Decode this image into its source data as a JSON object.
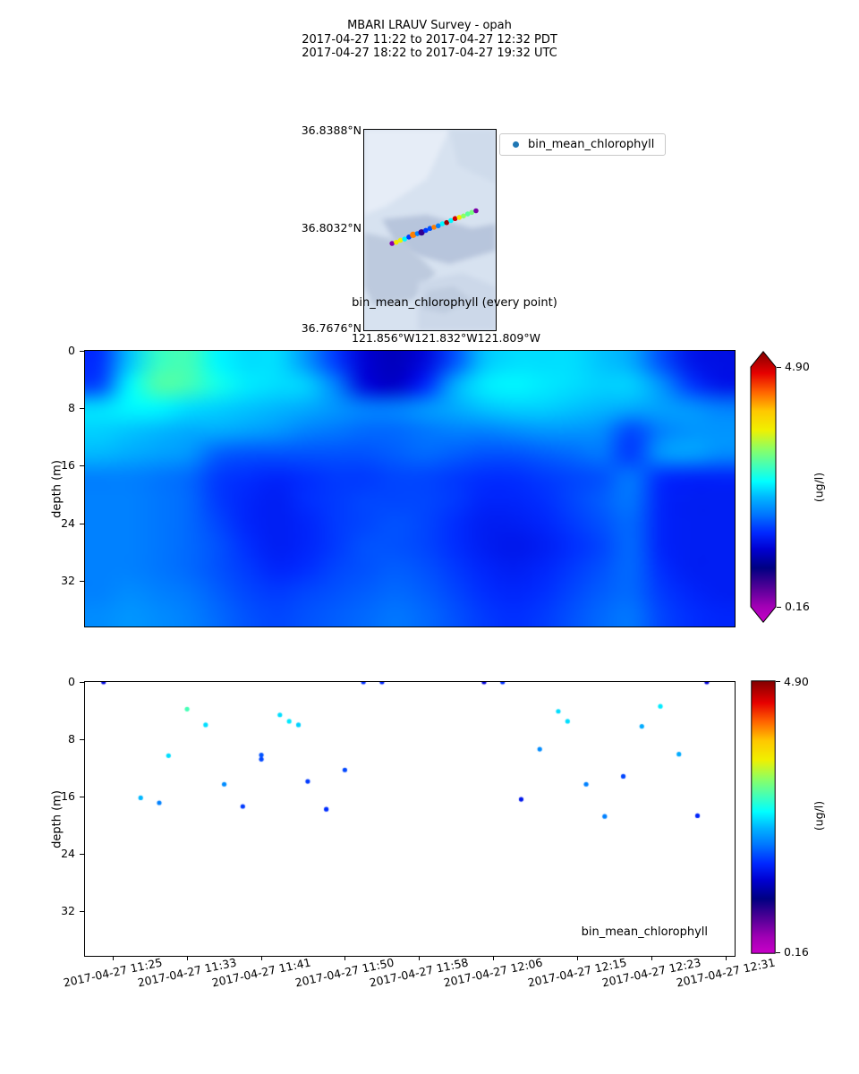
{
  "header": {
    "title": "MBARI LRAUV Survey - opah",
    "subtitle_pdt": "2017-04-27 11:22  to  2017-04-27 12:32 PDT",
    "subtitle_utc": "2017-04-27 18:22  to  2017-04-27 19:32 UTC"
  },
  "colors": {
    "legend_dot": "#1f77b4",
    "map_bg": "#d7e2f0",
    "spine": "#000000"
  },
  "colormap": {
    "vmin": 0.16,
    "vmax": 4.9,
    "stops": [
      [
        0.0,
        "#c800c8"
      ],
      [
        0.06,
        "#a000b4"
      ],
      [
        0.13,
        "#500096"
      ],
      [
        0.2,
        "#000082"
      ],
      [
        0.27,
        "#0000d2"
      ],
      [
        0.33,
        "#0028ff"
      ],
      [
        0.4,
        "#0078ff"
      ],
      [
        0.46,
        "#00b4ff"
      ],
      [
        0.52,
        "#00ffff"
      ],
      [
        0.58,
        "#46ffb4"
      ],
      [
        0.64,
        "#8cff64"
      ],
      [
        0.71,
        "#f0f000"
      ],
      [
        0.78,
        "#ffc800"
      ],
      [
        0.85,
        "#ff6400"
      ],
      [
        0.92,
        "#e60000"
      ],
      [
        1.0,
        "#820000"
      ]
    ]
  },
  "colorbar": {
    "max": "4.90",
    "min": "0.16",
    "unit": "(ug/l)"
  },
  "map": {
    "lat_labels": [
      "36.8388°N",
      "36.8032°N",
      "36.7676°N"
    ],
    "lon_labels": [
      "121.856°W",
      "121.832°W",
      "121.809°W"
    ],
    "legend_label": "bin_mean_chlorophyll",
    "caption": "bin_mean_chlorophyll (every point)",
    "track": [
      {
        "fx": 0.212,
        "fy": 0.567,
        "v": 0.55
      },
      {
        "fx": 0.244,
        "fy": 0.561,
        "v": 3.6
      },
      {
        "fx": 0.276,
        "fy": 0.551,
        "v": 3.5
      },
      {
        "fx": 0.308,
        "fy": 0.545,
        "v": 2.6
      },
      {
        "fx": 0.34,
        "fy": 0.535,
        "v": 1.8
      },
      {
        "fx": 0.372,
        "fy": 0.524,
        "v": 4.1,
        "s": 3.6
      },
      {
        "fx": 0.404,
        "fy": 0.518,
        "v": 2.1
      },
      {
        "fx": 0.436,
        "fy": 0.512,
        "v": 0.9,
        "s": 3.6
      },
      {
        "fx": 0.468,
        "fy": 0.502,
        "v": 1.8
      },
      {
        "fx": 0.5,
        "fy": 0.492,
        "v": 1.9
      },
      {
        "fx": 0.531,
        "fy": 0.486,
        "v": 4.1
      },
      {
        "fx": 0.563,
        "fy": 0.479,
        "v": 2.1
      },
      {
        "fx": 0.595,
        "fy": 0.469,
        "v": 2.6
      },
      {
        "fx": 0.627,
        "fy": 0.463,
        "v": 4.8
      },
      {
        "fx": 0.659,
        "fy": 0.453,
        "v": 2.6
      },
      {
        "fx": 0.691,
        "fy": 0.443,
        "v": 4.6
      },
      {
        "fx": 0.723,
        "fy": 0.437,
        "v": 3.6
      },
      {
        "fx": 0.755,
        "fy": 0.43,
        "v": 3.2
      },
      {
        "fx": 0.787,
        "fy": 0.42,
        "v": 3.0
      },
      {
        "fx": 0.818,
        "fy": 0.412,
        "v": 3.1
      },
      {
        "fx": 0.85,
        "fy": 0.404,
        "v": 0.6
      }
    ]
  },
  "chart_data": [
    {
      "type": "heatmap",
      "title": "bin_mean_chlorophyll (every point)",
      "ylabel": "depth (m)",
      "yticks": [
        "0",
        "8",
        "16",
        "24",
        "32"
      ],
      "ylim": [
        0,
        38.4
      ],
      "x_range": [
        "2017-04-27 11:22",
        "2017-04-27 12:32"
      ],
      "unit": "ug/l",
      "vmin": 0.16,
      "vmax": 4.9,
      "grid": false,
      "values": [
        [
          1.75,
          2.4,
          2.85,
          2.9,
          2.6,
          2.5,
          2.5,
          2.2,
          1.8,
          1.45,
          1.35,
          1.5,
          1.9,
          2.4,
          2.5,
          2.5,
          2.5,
          2.4,
          2.3,
          1.9,
          1.6,
          1.55
        ],
        [
          1.85,
          2.6,
          2.95,
          2.9,
          2.7,
          2.55,
          2.5,
          2.45,
          2.1,
          1.5,
          1.4,
          1.7,
          2.3,
          2.55,
          2.6,
          2.55,
          2.5,
          2.45,
          2.45,
          2.2,
          1.8,
          1.6
        ],
        [
          2.5,
          2.6,
          2.6,
          2.5,
          2.45,
          2.4,
          2.35,
          2.3,
          2.2,
          2.1,
          2.1,
          2.2,
          2.3,
          2.4,
          2.45,
          2.45,
          2.4,
          2.35,
          2.3,
          2.25,
          2.2,
          2.1
        ],
        [
          2.45,
          2.4,
          2.35,
          2.3,
          2.3,
          2.25,
          2.2,
          2.1,
          2.05,
          2.0,
          2.0,
          2.05,
          2.1,
          2.1,
          2.15,
          2.2,
          2.2,
          2.15,
          1.85,
          2.1,
          2.2,
          2.2
        ],
        [
          2.35,
          2.3,
          2.25,
          2.2,
          1.95,
          1.9,
          1.9,
          1.9,
          1.9,
          1.9,
          1.95,
          2.0,
          1.95,
          1.9,
          1.9,
          1.95,
          2.0,
          2.05,
          1.8,
          2.2,
          2.25,
          2.15
        ],
        [
          2.1,
          2.1,
          2.05,
          2.0,
          1.8,
          1.75,
          1.7,
          1.75,
          1.8,
          1.8,
          1.85,
          1.85,
          1.8,
          1.75,
          1.75,
          1.8,
          1.85,
          1.9,
          2.05,
          1.75,
          1.7,
          1.7
        ],
        [
          2.1,
          2.1,
          2.05,
          2.0,
          1.8,
          1.7,
          1.65,
          1.75,
          1.8,
          1.85,
          1.85,
          1.85,
          1.8,
          1.7,
          1.7,
          1.75,
          1.85,
          1.95,
          2.05,
          1.7,
          1.65,
          1.65
        ],
        [
          2.1,
          2.1,
          2.05,
          2.0,
          1.85,
          1.7,
          1.65,
          1.7,
          1.8,
          1.85,
          1.9,
          1.85,
          1.75,
          1.65,
          1.65,
          1.7,
          1.8,
          1.9,
          2.0,
          1.7,
          1.65,
          1.65
        ],
        [
          2.1,
          2.1,
          2.05,
          2.0,
          1.9,
          1.75,
          1.65,
          1.7,
          1.8,
          1.9,
          1.9,
          1.85,
          1.75,
          1.65,
          1.6,
          1.65,
          1.75,
          1.85,
          2.0,
          1.7,
          1.65,
          1.65
        ],
        [
          2.1,
          2.1,
          2.05,
          2.0,
          1.9,
          1.8,
          1.7,
          1.75,
          1.85,
          1.9,
          1.95,
          1.9,
          1.8,
          1.7,
          1.65,
          1.7,
          1.8,
          1.9,
          2.0,
          1.75,
          1.65,
          1.65
        ],
        [
          2.1,
          2.15,
          2.1,
          2.05,
          1.95,
          1.85,
          1.8,
          1.85,
          1.9,
          1.95,
          2.0,
          1.95,
          1.85,
          1.75,
          1.7,
          1.75,
          1.85,
          1.95,
          2.0,
          1.8,
          1.7,
          1.65
        ],
        [
          2.15,
          2.2,
          2.15,
          2.1,
          2.0,
          1.9,
          1.85,
          1.9,
          1.95,
          2.0,
          2.05,
          2.0,
          1.9,
          1.8,
          1.75,
          1.8,
          1.9,
          2.0,
          2.05,
          1.85,
          1.75,
          1.7
        ]
      ]
    },
    {
      "type": "scatter",
      "label": "bin_mean_chlorophyll",
      "ylabel": "depth (m)",
      "yticks": [
        "0",
        "8",
        "16",
        "24",
        "32"
      ],
      "ylim": [
        0,
        38.3
      ],
      "unit": "ug/l",
      "vmin": 0.16,
      "vmax": 4.9,
      "x_start": "11:22",
      "x_span_min": 70,
      "xticklabels": [
        "2017-04-27 11:25",
        "2017-04-27 11:33",
        "2017-04-27 11:41",
        "2017-04-27 11:50",
        "2017-04-27 11:58",
        "2017-04-27 12:06",
        "2017-04-27 12:15",
        "2017-04-27 12:23",
        "2017-04-27 12:31"
      ],
      "points": [
        {
          "t": "11:24",
          "depth": 0.0,
          "v": 1.5
        },
        {
          "t": "11:28",
          "depth": 16.2,
          "v": 2.35
        },
        {
          "t": "11:30",
          "depth": 16.9,
          "v": 2.1
        },
        {
          "t": "11:31",
          "depth": 10.3,
          "v": 2.5
        },
        {
          "t": "11:33",
          "depth": 3.8,
          "v": 2.9
        },
        {
          "t": "11:35",
          "depth": 6.0,
          "v": 2.5
        },
        {
          "t": "11:37",
          "depth": 14.3,
          "v": 2.15
        },
        {
          "t": "11:39",
          "depth": 17.4,
          "v": 1.8
        },
        {
          "t": "11:41",
          "depth": 10.2,
          "v": 1.9
        },
        {
          "t": "11:41",
          "depth": 10.8,
          "v": 1.85
        },
        {
          "t": "11:43",
          "depth": 4.6,
          "v": 2.5
        },
        {
          "t": "11:44",
          "depth": 5.5,
          "v": 2.55
        },
        {
          "t": "11:45",
          "depth": 6.0,
          "v": 2.45
        },
        {
          "t": "11:46",
          "depth": 13.9,
          "v": 1.8
        },
        {
          "t": "11:48",
          "depth": 17.8,
          "v": 1.75
        },
        {
          "t": "11:50",
          "depth": 12.3,
          "v": 1.85
        },
        {
          "t": "11:52",
          "depth": 0.0,
          "v": 1.75
        },
        {
          "t": "11:54",
          "depth": 0.0,
          "v": 1.7
        },
        {
          "t": "12:05",
          "depth": 0.0,
          "v": 1.45
        },
        {
          "t": "12:07",
          "depth": 0.0,
          "v": 1.75
        },
        {
          "t": "12:09",
          "depth": 16.4,
          "v": 1.6
        },
        {
          "t": "12:11",
          "depth": 9.4,
          "v": 2.15
        },
        {
          "t": "12:13",
          "depth": 4.1,
          "v": 2.5
        },
        {
          "t": "12:14",
          "depth": 5.5,
          "v": 2.5
        },
        {
          "t": "12:16",
          "depth": 14.3,
          "v": 2.1
        },
        {
          "t": "12:18",
          "depth": 18.8,
          "v": 2.1
        },
        {
          "t": "12:20",
          "depth": 13.2,
          "v": 1.85
        },
        {
          "t": "12:22",
          "depth": 6.2,
          "v": 2.3
        },
        {
          "t": "12:24",
          "depth": 3.4,
          "v": 2.55
        },
        {
          "t": "12:26",
          "depth": 10.1,
          "v": 2.3
        },
        {
          "t": "12:28",
          "depth": 18.7,
          "v": 1.7
        },
        {
          "t": "12:29",
          "depth": 0.0,
          "v": 1.45
        }
      ]
    }
  ]
}
